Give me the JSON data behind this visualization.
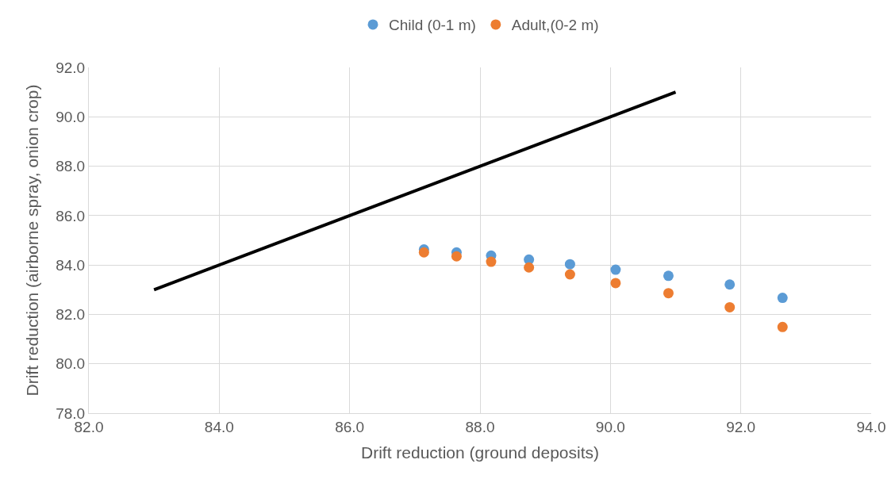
{
  "chart_data": {
    "type": "scatter",
    "xlabel": "Drift reduction (ground deposits)",
    "ylabel": "Drift reduction (airborne spray, onion crop)",
    "x": [
      87.14,
      87.64,
      88.17,
      88.75,
      89.38,
      90.08,
      90.89,
      91.83,
      92.64
    ],
    "series": [
      {
        "name": "Child (0-1 m)",
        "color": "#5b9bd5",
        "values": [
          84.63,
          84.51,
          84.38,
          84.22,
          84.03,
          83.81,
          83.56,
          83.21,
          82.67
        ],
        "marker": "circle"
      },
      {
        "name": "Adult,(0-2 m)",
        "color": "#ed7d31",
        "values": [
          84.51,
          84.35,
          84.13,
          83.9,
          83.62,
          83.27,
          82.86,
          82.29,
          81.49
        ],
        "marker": "circle"
      },
      {
        "type": "line",
        "color": "#000000",
        "x": [
          83,
          91
        ],
        "values": [
          83,
          91
        ],
        "marker": "none"
      }
    ],
    "xlim": [
      82,
      94
    ],
    "xticks": [
      {
        "value": 82,
        "label": "82.0"
      },
      {
        "value": 84,
        "label": "84.0"
      },
      {
        "value": 86,
        "label": "86.0"
      },
      {
        "value": 88,
        "label": "88.0"
      },
      {
        "value": 90,
        "label": "90.0"
      },
      {
        "value": 92,
        "label": "92.0"
      },
      {
        "value": 94,
        "label": "94.0"
      }
    ],
    "ylim": [
      78,
      92
    ],
    "yticks": [
      {
        "value": 78,
        "label": "78.0"
      },
      {
        "value": 80,
        "label": "80.0"
      },
      {
        "value": 82,
        "label": "82.0"
      },
      {
        "value": 84,
        "label": "84.0"
      },
      {
        "value": 86,
        "label": "86.0"
      },
      {
        "value": 88,
        "label": "88.0"
      },
      {
        "value": 90,
        "label": "90.0"
      },
      {
        "value": 92,
        "label": "92.0"
      }
    ],
    "grid": true,
    "legend": "top"
  }
}
